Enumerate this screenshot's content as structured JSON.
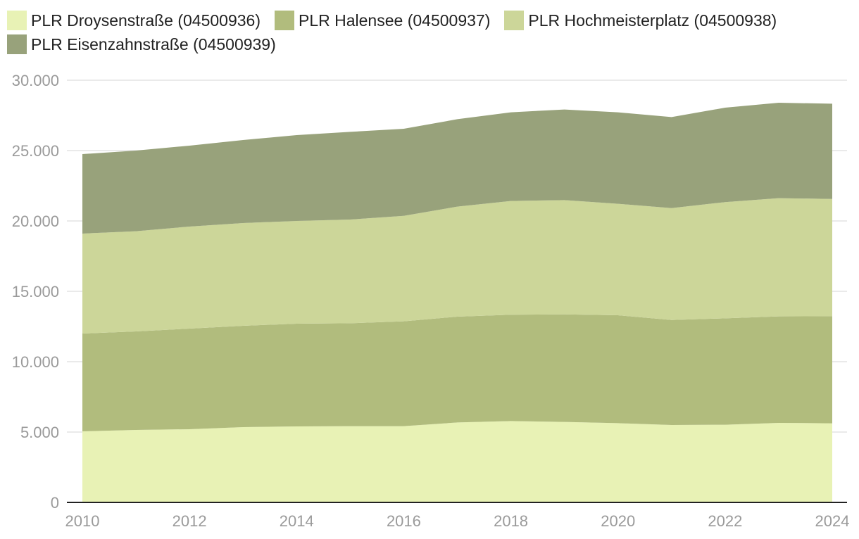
{
  "chart_data": {
    "type": "area",
    "stacked": true,
    "title": "",
    "xlabel": "",
    "ylabel": "",
    "x": [
      2010,
      2011,
      2012,
      2013,
      2014,
      2015,
      2016,
      2017,
      2018,
      2019,
      2020,
      2021,
      2022,
      2023,
      2024
    ],
    "x_tick_labels": [
      "2010",
      "2012",
      "2014",
      "2016",
      "2018",
      "2020",
      "2022",
      "2024"
    ],
    "x_tick_values": [
      2010,
      2012,
      2014,
      2016,
      2018,
      2020,
      2022,
      2024
    ],
    "ylim": [
      0,
      30000
    ],
    "y_tick_values": [
      0,
      5000,
      10000,
      15000,
      20000,
      25000,
      30000
    ],
    "y_tick_labels": [
      "0",
      "5.000",
      "10.000",
      "15.000",
      "20.000",
      "25.000",
      "30.000"
    ],
    "grid": true,
    "legend_position": "top-left",
    "series": [
      {
        "name": "PLR Droysenstraße (04500936)",
        "color": "#e8f2b5",
        "values": [
          5050,
          5150,
          5200,
          5350,
          5400,
          5420,
          5420,
          5680,
          5780,
          5720,
          5630,
          5500,
          5520,
          5650,
          5620
        ]
      },
      {
        "name": "PLR Halensee (04500937)",
        "color": "#b1bc7d",
        "values": [
          6950,
          7000,
          7150,
          7200,
          7300,
          7310,
          7450,
          7520,
          7560,
          7640,
          7670,
          7460,
          7560,
          7570,
          7610
        ]
      },
      {
        "name": "PLR Hochmeisterplatz (04500938)",
        "color": "#ccd699",
        "values": [
          7100,
          7120,
          7250,
          7300,
          7300,
          7370,
          7490,
          7820,
          8080,
          8120,
          7920,
          7950,
          8260,
          8400,
          8330
        ]
      },
      {
        "name": "PLR Eisenzahnstraße (04500939)",
        "color": "#98a27b",
        "values": [
          5650,
          5730,
          5750,
          5900,
          6100,
          6230,
          6190,
          6210,
          6300,
          6440,
          6500,
          6470,
          6710,
          6780,
          6770
        ]
      }
    ]
  }
}
